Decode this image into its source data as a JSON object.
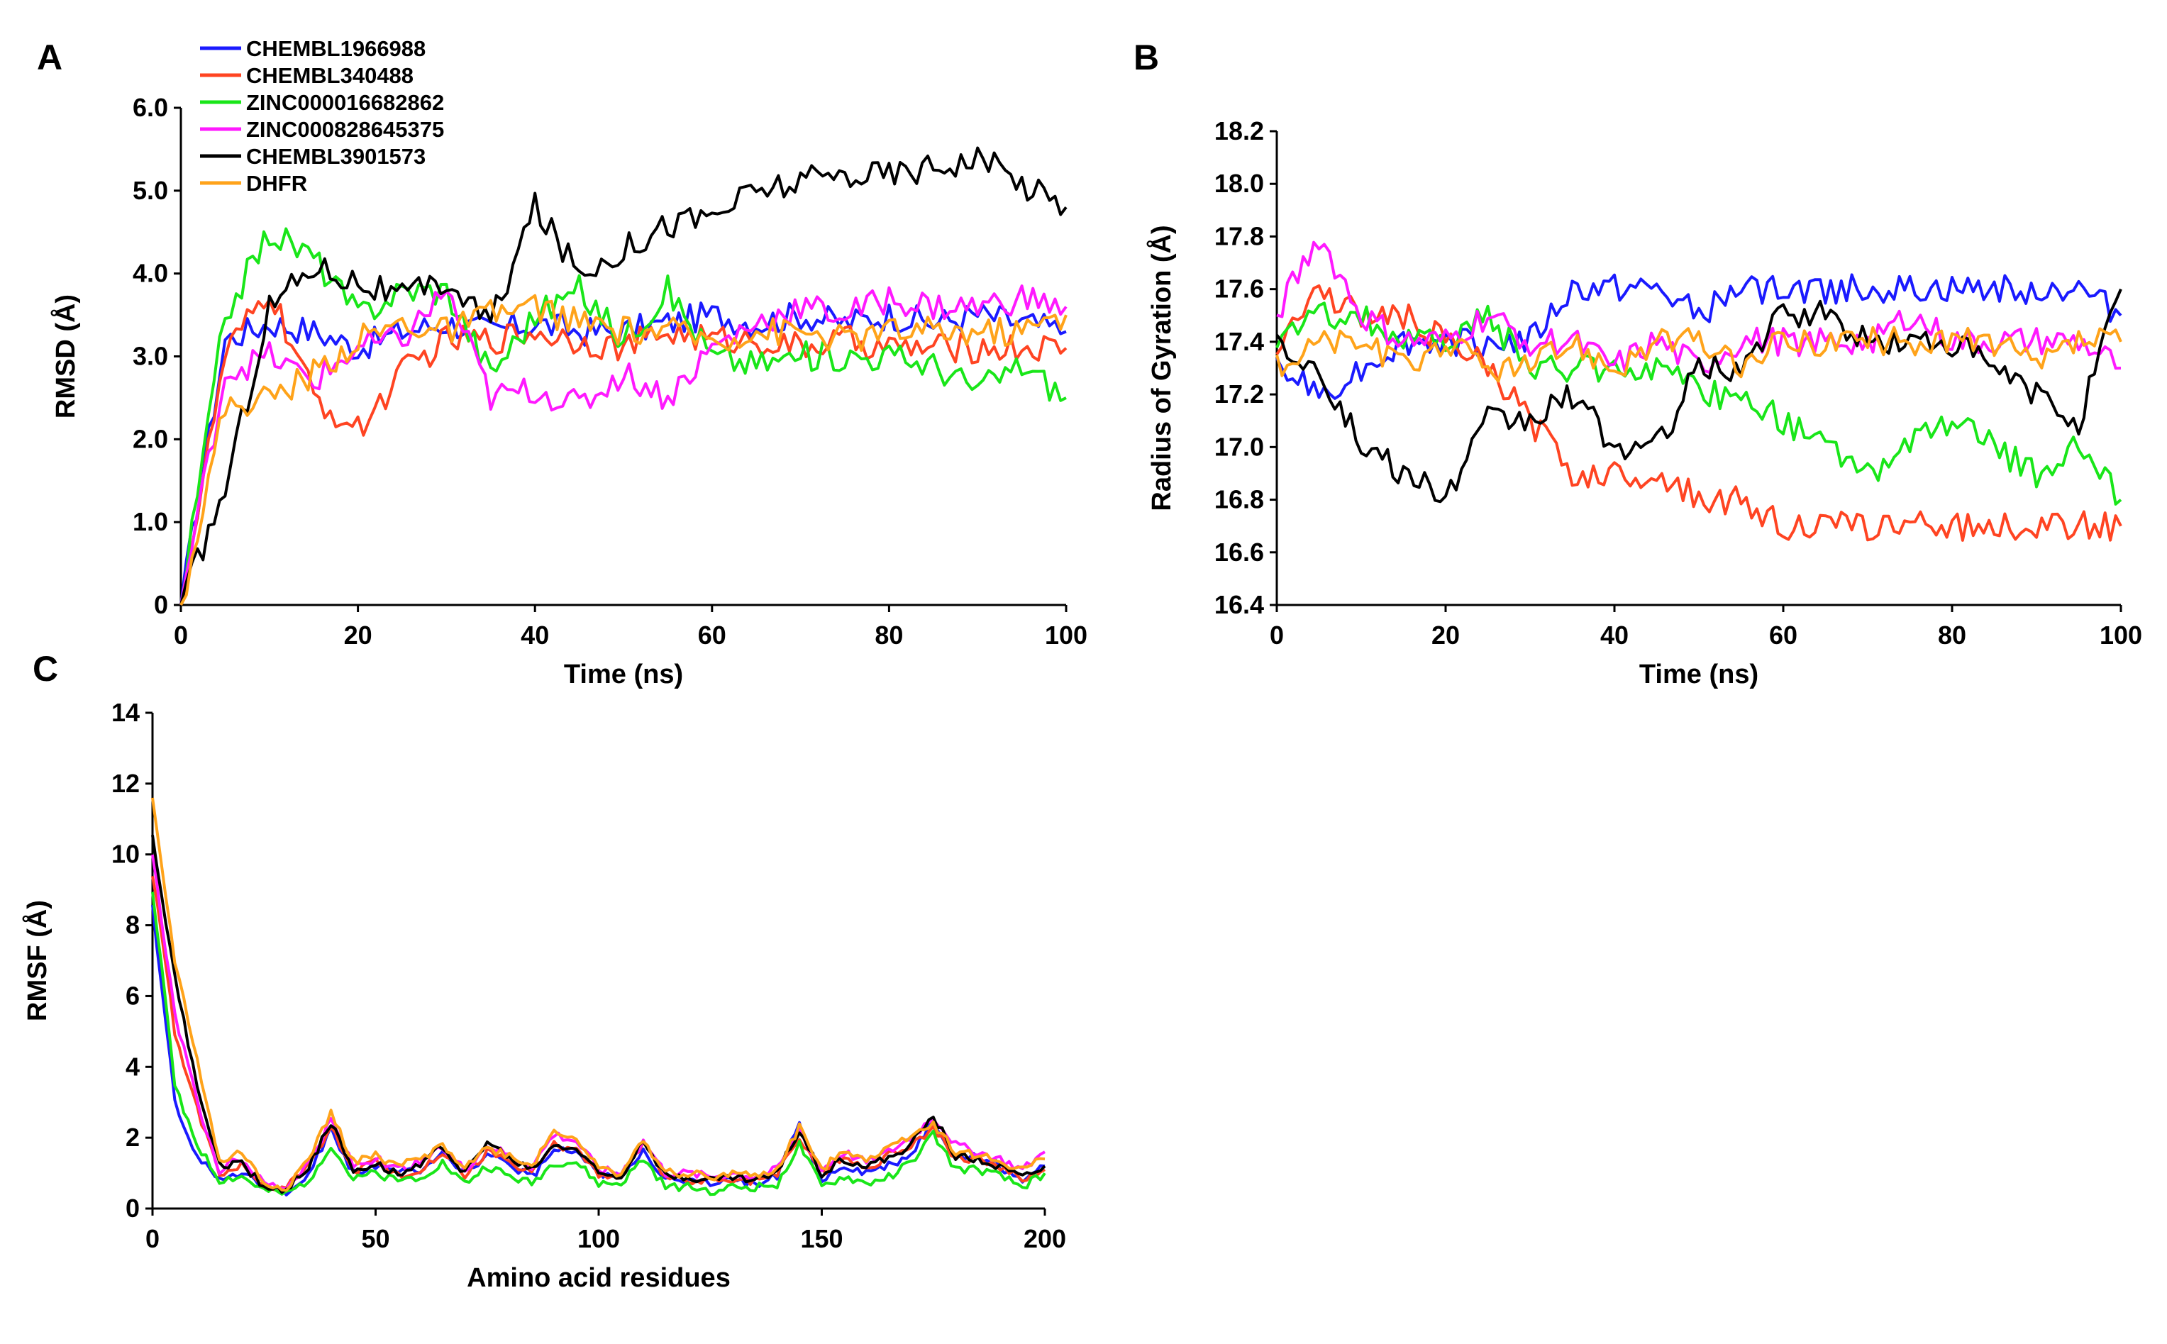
{
  "figure": {
    "series_meta": [
      {
        "name": "CHEMBL1966988",
        "color": "#1a1aff"
      },
      {
        "name": "CHEMBL340488",
        "color": "#ff4422"
      },
      {
        "name": "ZINC000016682862",
        "color": "#19e619"
      },
      {
        "name": "ZINC000828645375",
        "color": "#ff19ff"
      },
      {
        "name": "CHEMBL3901573",
        "color": "#000000"
      },
      {
        "name": "DHFR",
        "color": "#ffa31a"
      }
    ]
  },
  "chart_data": [
    {
      "panel": "A",
      "type": "line",
      "xlabel": "Time (ns)",
      "ylabel": "RMSD (Å)",
      "xlim": [
        0,
        100
      ],
      "ylim": [
        0,
        6
      ],
      "xticks": [
        0,
        20,
        40,
        60,
        80,
        100
      ],
      "xtick_labels": [
        "0",
        "20",
        "40",
        "60",
        "80",
        "100"
      ],
      "yticks": [
        0,
        1,
        2,
        3,
        4,
        5,
        6
      ],
      "ytick_labels": [
        "0",
        "1.0",
        "2.0",
        "3.0",
        "4.0",
        "5.0",
        "6.0"
      ],
      "x": [
        0,
        5,
        10,
        15,
        20,
        25,
        30,
        35,
        40,
        45,
        50,
        55,
        60,
        65,
        70,
        75,
        80,
        85,
        90,
        95,
        100
      ],
      "series": [
        {
          "name": "CHEMBL1966988",
          "values": [
            0.0,
            3.2,
            3.4,
            3.3,
            3.1,
            3.3,
            3.4,
            3.3,
            3.4,
            3.3,
            3.3,
            3.4,
            3.5,
            3.4,
            3.5,
            3.4,
            3.5,
            3.4,
            3.5,
            3.4,
            3.3
          ]
        },
        {
          "name": "CHEMBL340488",
          "values": [
            0.0,
            3.0,
            3.8,
            2.5,
            2.1,
            2.8,
            3.2,
            3.2,
            3.3,
            3.2,
            3.1,
            3.3,
            3.2,
            3.2,
            3.1,
            3.2,
            3.1,
            3.1,
            3.1,
            3.1,
            3.1
          ]
        },
        {
          "name": "ZINC000016682862",
          "values": [
            0.0,
            3.5,
            4.5,
            4.2,
            3.5,
            3.8,
            3.8,
            2.8,
            3.5,
            3.8,
            3.2,
            3.8,
            3.0,
            2.9,
            3.0,
            3.0,
            3.0,
            2.9,
            2.6,
            2.9,
            2.5
          ]
        },
        {
          "name": "ZINC000828645375",
          "values": [
            0.0,
            2.8,
            3.0,
            2.7,
            3.1,
            3.2,
            3.8,
            2.5,
            2.6,
            2.4,
            2.8,
            2.5,
            3.1,
            3.4,
            3.6,
            3.5,
            3.7,
            3.6,
            3.6,
            3.7,
            3.6
          ]
        },
        {
          "name": "CHEMBL3901573",
          "values": [
            0.0,
            1.4,
            3.6,
            4.1,
            3.9,
            3.7,
            3.9,
            3.4,
            4.8,
            4.0,
            4.3,
            4.6,
            4.7,
            5.0,
            5.1,
            5.2,
            5.2,
            5.3,
            5.4,
            5.1,
            4.8
          ]
        },
        {
          "name": "DHFR",
          "values": [
            0.0,
            2.4,
            2.5,
            2.8,
            3.2,
            3.4,
            3.3,
            3.5,
            3.6,
            3.4,
            3.3,
            3.3,
            3.2,
            3.3,
            3.3,
            3.2,
            3.3,
            3.3,
            3.3,
            3.3,
            3.5
          ]
        }
      ]
    },
    {
      "panel": "B",
      "type": "line",
      "xlabel": "Time (ns)",
      "ylabel": "Radius of Gyration (Å)",
      "xlim": [
        0,
        100
      ],
      "ylim": [
        16.4,
        18.2
      ],
      "xticks": [
        0,
        20,
        40,
        60,
        80,
        100
      ],
      "xtick_labels": [
        "0",
        "20",
        "40",
        "60",
        "80",
        "100"
      ],
      "yticks": [
        16.4,
        16.6,
        16.8,
        17.0,
        17.2,
        17.4,
        17.6,
        17.8,
        18.0,
        18.2
      ],
      "ytick_labels": [
        "16.4",
        "16.6",
        "16.8",
        "17.0",
        "17.2",
        "17.4",
        "17.6",
        "17.8",
        "18.0",
        "18.2"
      ],
      "x": [
        0,
        5,
        10,
        15,
        20,
        25,
        30,
        35,
        40,
        45,
        50,
        55,
        60,
        65,
        70,
        75,
        80,
        85,
        90,
        95,
        100
      ],
      "series": [
        {
          "name": "CHEMBL1966988",
          "values": [
            17.3,
            17.2,
            17.3,
            17.4,
            17.4,
            17.4,
            17.4,
            17.6,
            17.6,
            17.6,
            17.5,
            17.6,
            17.6,
            17.6,
            17.6,
            17.6,
            17.6,
            17.6,
            17.6,
            17.6,
            17.5
          ]
        },
        {
          "name": "CHEMBL340488",
          "values": [
            17.4,
            17.6,
            17.5,
            17.5,
            17.4,
            17.3,
            17.1,
            16.9,
            16.9,
            16.9,
            16.8,
            16.8,
            16.7,
            16.7,
            16.7,
            16.7,
            16.7,
            16.7,
            16.7,
            16.7,
            16.7
          ]
        },
        {
          "name": "ZINC000016682862",
          "values": [
            17.4,
            17.5,
            17.5,
            17.4,
            17.4,
            17.5,
            17.3,
            17.3,
            17.3,
            17.3,
            17.2,
            17.2,
            17.1,
            17.0,
            16.9,
            17.0,
            17.1,
            17.0,
            16.9,
            17.0,
            16.8
          ]
        },
        {
          "name": "ZINC000828645375",
          "values": [
            17.5,
            17.8,
            17.5,
            17.4,
            17.4,
            17.5,
            17.4,
            17.4,
            17.3,
            17.4,
            17.3,
            17.4,
            17.4,
            17.4,
            17.4,
            17.5,
            17.4,
            17.4,
            17.4,
            17.4,
            17.3
          ]
        },
        {
          "name": "CHEMBL3901573",
          "values": [
            17.4,
            17.3,
            17.0,
            16.9,
            16.8,
            17.1,
            17.1,
            17.2,
            17.0,
            17.0,
            17.3,
            17.3,
            17.5,
            17.5,
            17.4,
            17.4,
            17.4,
            17.3,
            17.2,
            17.1,
            17.6
          ]
        },
        {
          "name": "DHFR",
          "values": [
            17.3,
            17.4,
            17.4,
            17.3,
            17.4,
            17.3,
            17.3,
            17.4,
            17.3,
            17.4,
            17.4,
            17.3,
            17.4,
            17.4,
            17.4,
            17.4,
            17.4,
            17.4,
            17.3,
            17.4,
            17.4
          ]
        }
      ]
    },
    {
      "panel": "C",
      "type": "line",
      "xlabel": "Amino acid residues",
      "ylabel": "RMSF (Å)",
      "xlim": [
        0,
        200
      ],
      "ylim": [
        0,
        14
      ],
      "xticks": [
        0,
        50,
        100,
        150,
        200
      ],
      "xtick_labels": [
        "0",
        "50",
        "100",
        "150",
        "200"
      ],
      "yticks": [
        0,
        2,
        4,
        6,
        8,
        10,
        12,
        14
      ],
      "ytick_labels": [
        "0",
        "2",
        "4",
        "6",
        "8",
        "10",
        "12",
        "14"
      ],
      "x": [
        0,
        5,
        10,
        15,
        20,
        25,
        30,
        35,
        40,
        45,
        50,
        55,
        60,
        65,
        70,
        75,
        80,
        85,
        90,
        95,
        100,
        105,
        110,
        115,
        120,
        125,
        130,
        135,
        140,
        145,
        150,
        155,
        160,
        165,
        170,
        175,
        180,
        185,
        190,
        195,
        200
      ],
      "series": [
        {
          "name": "CHEMBL1966988",
          "values": [
            8.5,
            3.0,
            1.5,
            0.9,
            1.0,
            0.6,
            0.5,
            1.0,
            2.2,
            1.0,
            1.2,
            1.0,
            1.1,
            1.6,
            1.0,
            1.5,
            1.2,
            0.9,
            1.6,
            1.6,
            1.0,
            0.9,
            1.7,
            0.8,
            0.8,
            0.7,
            0.8,
            0.7,
            0.9,
            2.4,
            0.8,
            1.2,
            1.0,
            1.2,
            1.5,
            2.5,
            1.4,
            1.5,
            1.2,
            0.8,
            1.2
          ]
        },
        {
          "name": "CHEMBL340488",
          "values": [
            9.5,
            5.0,
            2.8,
            1.0,
            1.2,
            0.6,
            0.6,
            1.2,
            2.3,
            1.0,
            1.3,
            0.9,
            1.1,
            1.6,
            0.9,
            1.6,
            1.3,
            1.0,
            1.8,
            1.7,
            1.0,
            0.9,
            1.8,
            0.9,
            0.8,
            0.8,
            0.8,
            0.8,
            1.0,
            2.0,
            1.0,
            1.5,
            1.1,
            1.5,
            1.8,
            2.3,
            1.4,
            1.4,
            1.2,
            0.8,
            1.1
          ]
        },
        {
          "name": "ZINC000016682862",
          "values": [
            9.0,
            3.5,
            1.8,
            0.8,
            0.9,
            0.5,
            0.4,
            0.8,
            1.8,
            0.8,
            1.0,
            0.8,
            0.9,
            1.3,
            0.7,
            1.2,
            0.9,
            0.7,
            1.3,
            1.3,
            0.7,
            0.7,
            1.4,
            0.6,
            0.6,
            0.5,
            0.6,
            0.6,
            0.7,
            1.8,
            0.6,
            0.9,
            0.7,
            0.9,
            1.3,
            2.1,
            1.1,
            1.1,
            0.9,
            0.6,
            1.0
          ]
        },
        {
          "name": "ZINC000828645375",
          "values": [
            10.0,
            5.5,
            3.0,
            1.1,
            1.4,
            0.7,
            0.6,
            1.3,
            2.5,
            1.2,
            1.4,
            1.1,
            1.3,
            1.7,
            1.1,
            1.8,
            1.5,
            1.2,
            2.1,
            1.9,
            1.1,
            1.0,
            1.9,
            1.0,
            1.0,
            0.9,
            1.0,
            0.9,
            1.1,
            2.2,
            1.1,
            1.6,
            1.3,
            1.6,
            2.0,
            2.6,
            1.8,
            1.6,
            1.4,
            1.1,
            1.6
          ]
        },
        {
          "name": "CHEMBL3901573",
          "values": [
            10.5,
            6.5,
            3.5,
            1.2,
            1.3,
            0.6,
            0.5,
            1.2,
            2.4,
            1.1,
            1.3,
            1.0,
            1.2,
            1.8,
            1.0,
            1.9,
            1.4,
            1.1,
            1.8,
            1.7,
            1.0,
            0.9,
            2.0,
            0.9,
            0.9,
            0.8,
            0.9,
            0.8,
            1.0,
            2.2,
            1.0,
            1.4,
            1.2,
            1.4,
            1.8,
            2.6,
            1.5,
            1.4,
            1.2,
            0.9,
            1.2
          ]
        },
        {
          "name": "DHFR",
          "values": [
            11.5,
            7.0,
            4.2,
            1.3,
            1.6,
            0.7,
            0.6,
            1.4,
            2.7,
            1.3,
            1.5,
            1.2,
            1.4,
            1.8,
            1.2,
            1.7,
            1.5,
            1.2,
            2.2,
            2.0,
            1.1,
            1.0,
            1.9,
            1.0,
            1.0,
            0.9,
            1.0,
            0.9,
            1.1,
            2.3,
            1.1,
            1.7,
            1.4,
            1.7,
            2.1,
            2.4,
            1.6,
            1.5,
            1.3,
            1.1,
            1.4
          ]
        }
      ]
    }
  ]
}
